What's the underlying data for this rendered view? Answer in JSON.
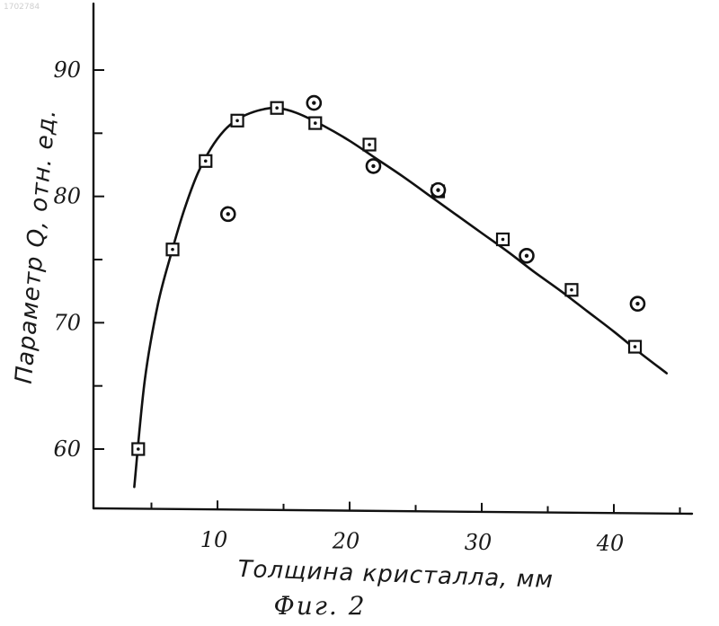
{
  "corner_text": "1702784",
  "chart_data": {
    "type": "scatter",
    "xlabel": "Толщина кристалла, мм",
    "ylabel": "Параметр Q, отн. ед.",
    "caption": "Фиг. 2",
    "xlim": [
      0,
      47
    ],
    "ylim": [
      54,
      96
    ],
    "x_ticks": [
      10,
      20,
      30,
      40
    ],
    "x_minor_ticks": [
      5,
      15,
      25,
      35,
      45
    ],
    "y_ticks": [
      60,
      70,
      80,
      90
    ],
    "y_minor_ticks": [
      65,
      75,
      85
    ],
    "series": [
      {
        "marker": "square",
        "x": [
          4.0,
          6.6,
          9.1,
          11.5,
          14.5,
          17.4,
          21.5,
          26.7,
          31.6,
          36.8,
          41.6
        ],
        "y": [
          60.0,
          75.8,
          82.8,
          86.0,
          87.0,
          85.8,
          84.1,
          80.4,
          76.6,
          72.6,
          68.1
        ]
      },
      {
        "marker": "circle",
        "x": [
          10.8,
          17.3,
          21.8,
          26.7,
          33.4,
          41.8
        ],
        "y": [
          78.6,
          87.4,
          82.4,
          80.5,
          75.3,
          71.5
        ]
      }
    ],
    "curve": {
      "x": [
        3.7,
        4.5,
        5.5,
        6.5,
        7.5,
        8.5,
        9.5,
        10.5,
        11.5,
        12.5,
        13.5,
        14.5,
        16.0,
        18.0,
        20.0,
        22.0,
        24.0,
        26.0,
        28.0,
        30.0,
        32.0,
        34.0,
        36.0,
        38.0,
        40.0,
        42.0,
        44.0
      ],
      "y": [
        57.0,
        65.5,
        71.5,
        75.5,
        79.0,
        81.8,
        83.8,
        85.2,
        86.1,
        86.6,
        86.9,
        87.0,
        86.6,
        85.6,
        84.4,
        83.0,
        81.6,
        80.1,
        78.6,
        77.1,
        75.6,
        74.0,
        72.5,
        70.9,
        69.3,
        67.6,
        66.0
      ]
    }
  }
}
